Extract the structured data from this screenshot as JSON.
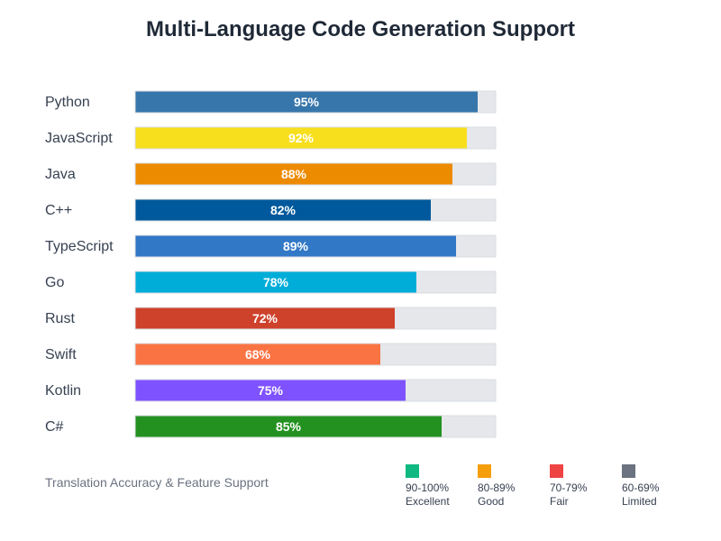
{
  "chart_data": {
    "type": "bar",
    "orientation": "horizontal",
    "title": "Multi-Language Code Generation Support",
    "subtitle": "Translation Accuracy & Feature Support",
    "xlabel": "",
    "ylabel": "",
    "xlim": [
      0,
      100
    ],
    "grid": false,
    "value_suffix": "%",
    "track_color": "#e5e7eb",
    "categories": [
      "Python",
      "JavaScript",
      "Java",
      "C++",
      "TypeScript",
      "Go",
      "Rust",
      "Swift",
      "Kotlin",
      "C#"
    ],
    "values": [
      95,
      92,
      88,
      82,
      89,
      78,
      72,
      68,
      75,
      85
    ],
    "value_labels": [
      "95%",
      "92%",
      "88%",
      "82%",
      "89%",
      "78%",
      "72%",
      "68%",
      "75%",
      "85%"
    ],
    "colors": [
      "#3776ab",
      "#f7df1e",
      "#ed8b00",
      "#00599c",
      "#3178c6",
      "#00add8",
      "#ce422b",
      "#fa7343",
      "#7f52ff",
      "#239120"
    ],
    "legend": {
      "placement": "bottom-right",
      "items": [
        {
          "range": "90-100%",
          "label": "Excellent",
          "color": "#10b981"
        },
        {
          "range": "80-89%",
          "label": "Good",
          "color": "#f59e0b"
        },
        {
          "range": "70-79%",
          "label": "Fair",
          "color": "#ef4444"
        },
        {
          "range": "60-69%",
          "label": "Limited",
          "color": "#6b7280"
        }
      ]
    }
  }
}
